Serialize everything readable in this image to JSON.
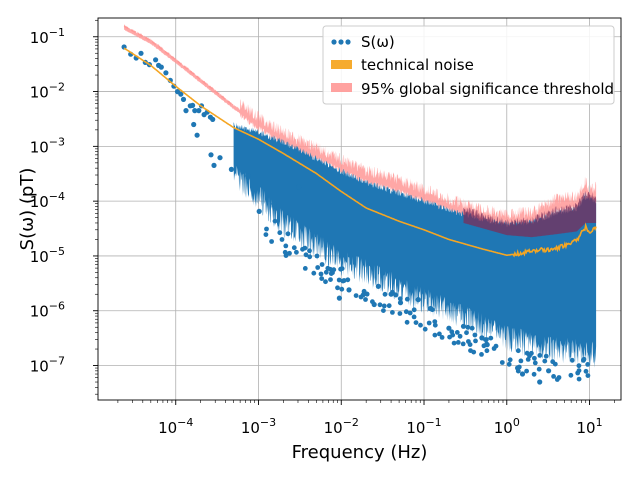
{
  "chart_data": {
    "type": "scatter",
    "title": "",
    "xlabel": "Frequency (Hz)",
    "ylabel": "S(ω) (pT)",
    "xscale": "log",
    "yscale": "log",
    "xlim": [
      1.15e-05,
      24
    ],
    "ylim": [
      2.35e-08,
      0.22
    ],
    "grid": true,
    "x_ticks": [
      {
        "base": "10",
        "exp": "−4",
        "value": 0.0001
      },
      {
        "base": "10",
        "exp": "−3",
        "value": 0.001
      },
      {
        "base": "10",
        "exp": "−2",
        "value": 0.01
      },
      {
        "base": "10",
        "exp": "−1",
        "value": 0.1
      },
      {
        "base": "10",
        "exp": "0",
        "value": 1
      },
      {
        "base": "10",
        "exp": "1",
        "value": 10
      }
    ],
    "y_ticks": [
      {
        "base": "10",
        "exp": "−7",
        "value": 1e-07
      },
      {
        "base": "10",
        "exp": "−6",
        "value": 1e-06
      },
      {
        "base": "10",
        "exp": "−5",
        "value": 1e-05
      },
      {
        "base": "10",
        "exp": "−4",
        "value": 0.0001
      },
      {
        "base": "10",
        "exp": "−3",
        "value": 0.001
      },
      {
        "base": "10",
        "exp": "−2",
        "value": 0.01
      },
      {
        "base": "10",
        "exp": "−1",
        "value": 0.1
      }
    ],
    "legend_position": "top-right",
    "series": [
      {
        "name": "S(ω)",
        "kind": "scatter",
        "color": "#1f77b4",
        "points": [
          [
            2.38e-05,
            0.065
          ],
          [
            2.86e-05,
            0.048
          ],
          [
            3.33e-05,
            0.041
          ],
          [
            3.8e-05,
            0.05
          ],
          [
            4.29e-05,
            0.034
          ],
          [
            4.8e-05,
            0.031
          ],
          [
            5.71e-05,
            0.038
          ],
          [
            6.2e-05,
            0.03
          ],
          [
            6.7e-05,
            0.028
          ],
          [
            7.6e-05,
            0.022
          ],
          [
            8.6e-05,
            0.016
          ],
          [
            9.5e-05,
            0.0125
          ],
          [
            0.000105,
            0.01
          ],
          [
            0.000115,
            0.009
          ],
          [
            0.000124,
            0.0072
          ],
          [
            0.00015,
            0.0055
          ],
          [
            0.00016,
            0.0056
          ],
          [
            0.00017,
            0.0045
          ],
          [
            0.00019,
            0.0045
          ],
          [
            0.000205,
            0.0055
          ],
          [
            0.00022,
            0.0038
          ],
          [
            0.00024,
            0.0042
          ],
          [
            0.000262,
            0.0034
          ],
          [
            0.00028,
            0.0031
          ]
        ],
        "outliers": [
          [
            0.000133,
            0.0045
          ],
          [
            0.000165,
            0.0025
          ],
          [
            0.000181,
            0.0016
          ],
          [
            0.000267,
            0.0007
          ],
          [
            0.00029,
            0.00045
          ],
          [
            0.000343,
            0.00062
          ],
          [
            0.00047,
            0.00038
          ],
          [
            0.00075,
            0.00029
          ],
          [
            0.00102,
            6.5e-05
          ],
          [
            0.00155,
            9e-05
          ],
          [
            0.00305,
            0.00018
          ],
          [
            0.0095,
            1.7e-06
          ],
          [
            0.0124,
            2.4e-06
          ],
          [
            0.025,
            1.3e-06
          ],
          [
            0.04,
            2e-06
          ],
          [
            0.052,
            1.4e-06
          ],
          [
            0.07,
            2.5e-06
          ],
          [
            0.085,
            1.6e-06
          ],
          [
            0.12,
            1.1e-06
          ],
          [
            0.2,
            4.8e-07
          ],
          [
            0.3,
            5.2e-07
          ],
          [
            0.5,
            3.2e-07
          ],
          [
            0.58,
            2.4e-07
          ],
          [
            1.35,
            9e-08
          ],
          [
            1.55,
            7e-08
          ],
          [
            2.5,
            5e-08
          ],
          [
            3.2,
            8e-08
          ]
        ]
      },
      {
        "name": "technical noise",
        "kind": "line",
        "color": "#f5a623",
        "points": [
          [
            2.38e-05,
            0.062
          ],
          [
            5e-05,
            0.03
          ],
          [
            0.0001,
            0.0125
          ],
          [
            0.0002,
            0.0055
          ],
          [
            0.0005,
            0.0022
          ],
          [
            0.001,
            0.00135
          ],
          [
            0.002,
            0.00074
          ],
          [
            0.005,
            0.00032
          ],
          [
            0.01,
            0.00015
          ],
          [
            0.02,
            7.5e-05
          ],
          [
            0.05,
            4.3e-05
          ],
          [
            0.1,
            3e-05
          ],
          [
            0.2,
            2e-05
          ],
          [
            0.5,
            1.35e-05
          ],
          [
            1,
            1.03e-05
          ],
          [
            1.5,
            1.12e-05
          ],
          [
            2,
            1.25e-05
          ],
          [
            4,
            1.35e-05
          ],
          [
            7,
            1.9e-05
          ],
          [
            9,
            3.4e-05
          ],
          [
            10,
            2.6e-05
          ],
          [
            12,
            3.2e-05
          ]
        ]
      },
      {
        "name": "95% global significance threshold",
        "kind": "line",
        "color": "#ff9896",
        "points": [
          [
            2.38e-05,
            0.155
          ],
          [
            5e-05,
            0.085
          ],
          [
            0.0001,
            0.038
          ],
          [
            0.0002,
            0.0165
          ],
          [
            0.0005,
            0.0055
          ],
          [
            0.001,
            0.0027
          ],
          [
            0.002,
            0.0014
          ],
          [
            0.005,
            0.00075
          ],
          [
            0.01,
            0.00045
          ],
          [
            0.02,
            0.00028
          ],
          [
            0.05,
            0.00019
          ],
          [
            0.1,
            0.00013
          ],
          [
            0.2,
            8.5e-05
          ],
          [
            0.5,
            5.5e-05
          ],
          [
            1,
            4.4e-05
          ],
          [
            2,
            5e-05
          ],
          [
            4,
            8.5e-05
          ],
          [
            7,
            9.5e-05
          ],
          [
            9,
            0.00018
          ],
          [
            10,
            0.00012
          ],
          [
            12,
            0.00014
          ]
        ]
      }
    ]
  }
}
